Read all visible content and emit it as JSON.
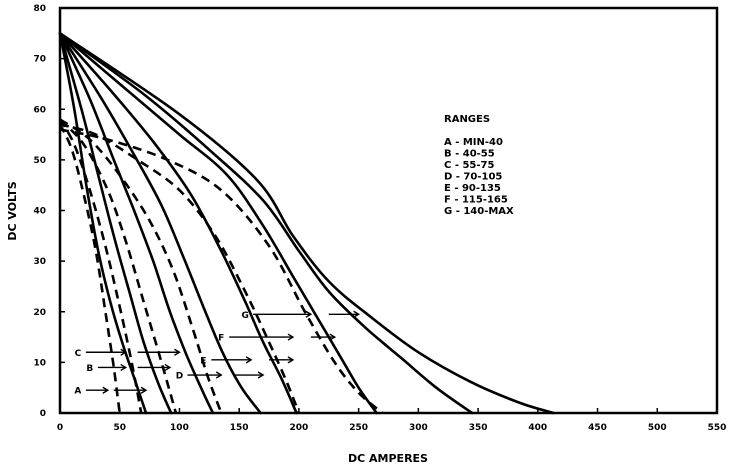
{
  "chart_data": {
    "type": "line",
    "xlabel": "DC AMPERES",
    "ylabel": "DC VOLTS",
    "xlim": [
      0,
      550
    ],
    "ylim": [
      0,
      80
    ],
    "xticks": [
      "0",
      "50",
      "100",
      "150",
      "200",
      "250",
      "300",
      "350",
      "400",
      "450",
      "500",
      "550"
    ],
    "yticks": [
      "0",
      "10",
      "20",
      "30",
      "40",
      "50",
      "60",
      "70",
      "80"
    ],
    "legend": {
      "title": "RANGES",
      "entries": [
        "A  -  MIN-40",
        "B  -  40-55",
        "C  -  55-75",
        "D  -  70-105",
        "E  -  90-135",
        "F  -  115-165",
        "G  -  140-MAX"
      ]
    },
    "series": [
      {
        "name": "A",
        "style": "dashed",
        "points": [
          [
            0,
            57
          ],
          [
            10,
            52
          ],
          [
            20,
            43
          ],
          [
            30,
            32
          ],
          [
            38,
            20
          ],
          [
            45,
            9
          ],
          [
            50,
            0
          ]
        ]
      },
      {
        "name": "A",
        "style": "solid",
        "points": [
          [
            0,
            75
          ],
          [
            12,
            60
          ],
          [
            22,
            45
          ],
          [
            32,
            32
          ],
          [
            42,
            22
          ],
          [
            52,
            14
          ],
          [
            62,
            7
          ],
          [
            72,
            0
          ]
        ]
      },
      {
        "name": "B",
        "style": "dashed",
        "points": [
          [
            0,
            58
          ],
          [
            12,
            53
          ],
          [
            25,
            44
          ],
          [
            38,
            33
          ],
          [
            50,
            21
          ],
          [
            60,
            10
          ],
          [
            68,
            0
          ]
        ]
      },
      {
        "name": "B",
        "style": "solid",
        "points": [
          [
            0,
            75
          ],
          [
            18,
            60
          ],
          [
            32,
            47
          ],
          [
            45,
            35
          ],
          [
            58,
            24
          ],
          [
            70,
            14
          ],
          [
            82,
            6
          ],
          [
            93,
            0
          ]
        ]
      },
      {
        "name": "C",
        "style": "dashed",
        "points": [
          [
            0,
            58
          ],
          [
            20,
            53
          ],
          [
            40,
            44
          ],
          [
            55,
            34
          ],
          [
            70,
            22
          ],
          [
            85,
            10
          ],
          [
            97,
            0
          ]
        ]
      },
      {
        "name": "C",
        "style": "solid",
        "points": [
          [
            0,
            75
          ],
          [
            25,
            62
          ],
          [
            45,
            50
          ],
          [
            62,
            40
          ],
          [
            78,
            30
          ],
          [
            92,
            20
          ],
          [
            105,
            12
          ],
          [
            118,
            5
          ],
          [
            128,
            0
          ]
        ]
      },
      {
        "name": "D",
        "style": "dashed",
        "points": [
          [
            0,
            58
          ],
          [
            25,
            54
          ],
          [
            50,
            47
          ],
          [
            75,
            38
          ],
          [
            95,
            28
          ],
          [
            112,
            16
          ],
          [
            124,
            7
          ],
          [
            135,
            0
          ]
        ]
      },
      {
        "name": "D",
        "style": "solid",
        "points": [
          [
            0,
            75
          ],
          [
            35,
            62
          ],
          [
            62,
            51
          ],
          [
            85,
            41
          ],
          [
            103,
            31
          ],
          [
            120,
            21
          ],
          [
            136,
            12
          ],
          [
            152,
            5
          ],
          [
            168,
            0
          ]
        ]
      },
      {
        "name": "E",
        "style": "dashed",
        "points": [
          [
            0,
            57
          ],
          [
            30,
            55
          ],
          [
            65,
            50
          ],
          [
            100,
            44
          ],
          [
            130,
            35
          ],
          [
            155,
            24
          ],
          [
            175,
            14
          ],
          [
            190,
            6
          ],
          [
            200,
            0
          ]
        ]
      },
      {
        "name": "E",
        "style": "solid",
        "points": [
          [
            0,
            75
          ],
          [
            45,
            63
          ],
          [
            80,
            53
          ],
          [
            110,
            43
          ],
          [
            135,
            32
          ],
          [
            155,
            22
          ],
          [
            170,
            14
          ],
          [
            185,
            7
          ],
          [
            198,
            0
          ]
        ]
      },
      {
        "name": "F",
        "style": "dashed",
        "points": [
          [
            0,
            56
          ],
          [
            40,
            54
          ],
          [
            90,
            50
          ],
          [
            135,
            44
          ],
          [
            175,
            33
          ],
          [
            205,
            20
          ],
          [
            230,
            10
          ],
          [
            250,
            4
          ],
          [
            270,
            0
          ]
        ]
      },
      {
        "name": "F",
        "style": "solid",
        "points": [
          [
            0,
            75
          ],
          [
            55,
            64
          ],
          [
            100,
            55
          ],
          [
            140,
            47
          ],
          [
            170,
            37
          ],
          [
            195,
            27
          ],
          [
            215,
            19
          ],
          [
            235,
            11
          ],
          [
            250,
            5
          ],
          [
            265,
            0
          ]
        ]
      },
      {
        "name": "G",
        "style": "solid",
        "points": [
          [
            0,
            75
          ],
          [
            70,
            63
          ],
          [
            125,
            52
          ],
          [
            170,
            42
          ],
          [
            200,
            32
          ],
          [
            225,
            24
          ],
          [
            255,
            17
          ],
          [
            285,
            11
          ],
          [
            315,
            5
          ],
          [
            345,
            0
          ]
        ]
      },
      {
        "name": "G",
        "style": "solid",
        "points": [
          [
            0,
            75
          ],
          [
            100,
            59
          ],
          [
            165,
            46
          ],
          [
            195,
            35
          ],
          [
            225,
            26
          ],
          [
            260,
            19
          ],
          [
            300,
            12
          ],
          [
            345,
            6
          ],
          [
            385,
            2
          ],
          [
            413,
            0
          ]
        ]
      }
    ],
    "curve_labels": [
      {
        "label": "A",
        "x0": 15,
        "x1": 40,
        "x2": 45,
        "x3": 72,
        "y": 4.5
      },
      {
        "label": "B",
        "x0": 25,
        "x1": 55,
        "x2": 65,
        "x3": 92,
        "y": 9
      },
      {
        "label": "C",
        "x0": 15,
        "x1": 55,
        "x2": 65,
        "x3": 100,
        "y": 12
      },
      {
        "label": "D",
        "x0": 100,
        "x1": 135,
        "x2": 145,
        "x3": 170,
        "y": 7.5
      },
      {
        "label": "E",
        "x0": 120,
        "x1": 160,
        "x2": 175,
        "x3": 195,
        "y": 10.5
      },
      {
        "label": "F",
        "x0": 135,
        "x1": 195,
        "x2": 210,
        "x3": 230,
        "y": 15
      },
      {
        "label": "G",
        "x0": 155,
        "x1": 210,
        "x2": 225,
        "x3": 250,
        "y": 19.5
      }
    ]
  }
}
